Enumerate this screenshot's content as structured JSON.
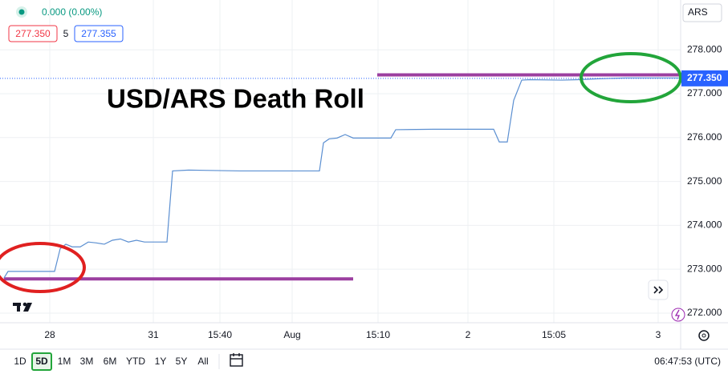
{
  "chart_data": {
    "type": "line",
    "title": "USD/ARS Death Roll",
    "change": "0.000 (0.00%)",
    "bid": "277.350",
    "spread": "5",
    "ask": "277.355",
    "currency": "ARS",
    "x": [
      0.625,
      1.25,
      8.5,
      9.375,
      10.25,
      11.25,
      12.5,
      13.75,
      15,
      16.25,
      17.5,
      18.75,
      20,
      21.25,
      22.5,
      23.75,
      26,
      26.875,
      29.375,
      37.5,
      49.75,
      50.375,
      51.25,
      52.5,
      53.75,
      55,
      60.875,
      61.625,
      67.5,
      76.875,
      77.75,
      79,
      80,
      81.25,
      82.5,
      87.5,
      90,
      93.125,
      97.5,
      106
    ],
    "series": [
      {
        "color": "#5b8fd1",
        "values": [
          272.8,
          272.95,
          272.95,
          273.47,
          273.57,
          273.51,
          273.51,
          273.62,
          273.6,
          273.57,
          273.66,
          273.69,
          273.62,
          273.66,
          273.62,
          273.62,
          273.62,
          275.24,
          275.26,
          275.24,
          275.24,
          275.88,
          275.97,
          275.99,
          276.07,
          275.99,
          275.99,
          276.18,
          276.19,
          276.19,
          275.9,
          275.9,
          276.85,
          277.31,
          277.32,
          277.31,
          277.32,
          277.34,
          277.36,
          277.36
        ]
      }
    ],
    "xlim": [
      0,
      106
    ],
    "ylim": [
      271.78,
      278.99
    ],
    "xticks": [
      {
        "value": 7.75,
        "label": "28"
      },
      {
        "value": 23.875,
        "label": "31"
      },
      {
        "value": 34.25,
        "label": "15:40"
      },
      {
        "value": 45.5,
        "label": "Aug"
      },
      {
        "value": 58.875,
        "label": "15:10"
      },
      {
        "value": 72.875,
        "label": "2"
      },
      {
        "value": 86.25,
        "label": "15:05"
      },
      {
        "value": 102.5,
        "label": "3"
      }
    ],
    "yticks": [
      {
        "value": 272,
        "label": "272.000"
      },
      {
        "value": 273,
        "label": "273.000"
      },
      {
        "value": 274,
        "label": "274.000"
      },
      {
        "value": 275,
        "label": "275.000"
      },
      {
        "value": 276,
        "label": "276.000"
      },
      {
        "value": 277,
        "label": "277.000"
      },
      {
        "value": 278,
        "label": "278.000"
      }
    ],
    "grid": true,
    "last_price": {
      "value": 277.35,
      "label": "277.350",
      "color": "#2962ff"
    },
    "levels": [
      {
        "value": 272.78,
        "x": [
          0.6,
          55
        ],
        "color": "#9c3fa0"
      },
      {
        "value": 277.43,
        "x": [
          58.75,
          106
        ],
        "color": "#9c3fa0"
      }
    ]
  },
  "toolbar": {
    "ranges": [
      "1D",
      "5D",
      "1M",
      "3M",
      "6M",
      "YTD",
      "1Y",
      "5Y",
      "All"
    ],
    "selected": 1,
    "clock": "06:47:53 (UTC)"
  }
}
